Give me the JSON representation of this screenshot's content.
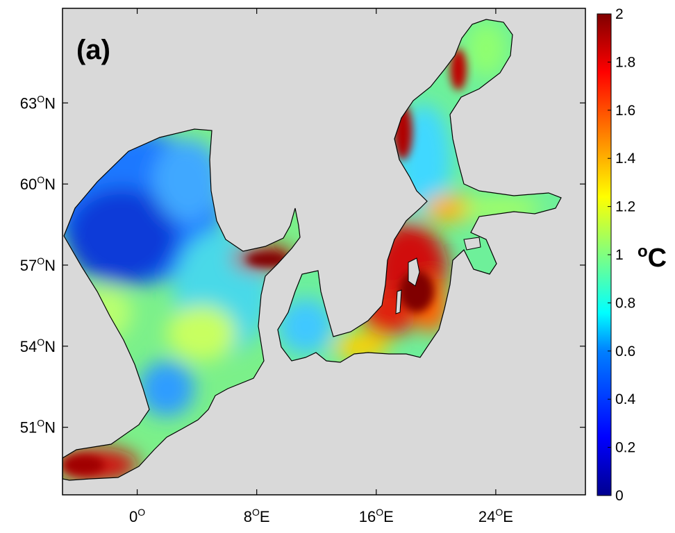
{
  "panel_label": "(a)",
  "unit_label": "oC",
  "map": {
    "lon_ticks": [
      "0O",
      "8OE",
      "16OE",
      "24OE"
    ],
    "lat_ticks": [
      "63ON",
      "60ON",
      "57ON",
      "54ON",
      "51ON"
    ],
    "lon_tick_values": [
      0,
      8,
      16,
      24
    ],
    "lat_tick_values": [
      63,
      60,
      57,
      54,
      51
    ],
    "lon_range": [
      -5,
      30
    ],
    "lat_range": [
      48.5,
      66.5
    ],
    "background_color": "#d9d9d9",
    "coastline_color": "#000000"
  },
  "colorbar": {
    "colormap": "jet",
    "range": [
      0,
      2
    ],
    "ticks": [
      "0",
      "0.2",
      "0.4",
      "0.6",
      "0.8",
      "1",
      "1.2",
      "1.4",
      "1.6",
      "1.8",
      "2"
    ],
    "colors": [
      "#00008f",
      "#0000ff",
      "#0080ff",
      "#00ffff",
      "#80ff80",
      "#ffff00",
      "#ff8000",
      "#ff0000",
      "#800000"
    ]
  }
}
